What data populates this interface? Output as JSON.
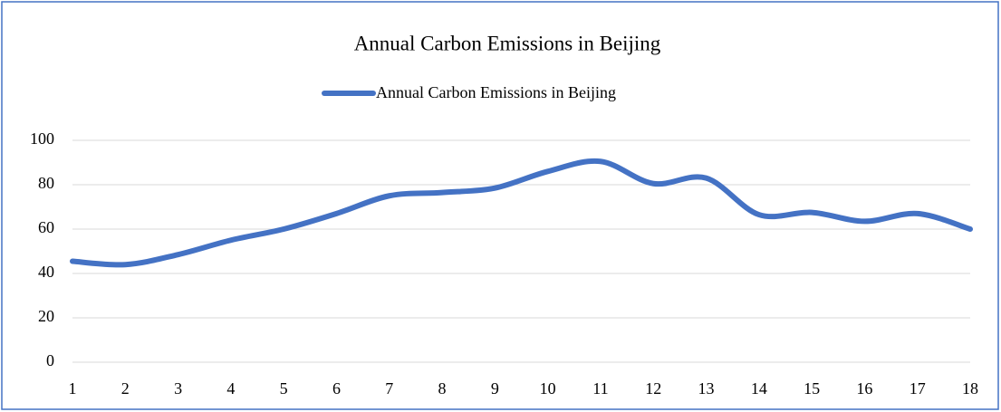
{
  "chart_data": {
    "type": "line",
    "title": "Annual Carbon Emissions in Beijing",
    "x": [
      1,
      2,
      3,
      4,
      5,
      6,
      7,
      8,
      9,
      10,
      11,
      12,
      13,
      14,
      15,
      16,
      17,
      18
    ],
    "series": [
      {
        "name": "Annual Carbon Emissions in Beijing",
        "color": "#4472c4",
        "values": [
          45.5,
          44,
          48.5,
          55,
          60,
          67,
          75,
          76.5,
          78.5,
          86,
          90.5,
          80.5,
          83,
          66.5,
          67.5,
          63.5,
          67,
          60
        ]
      }
    ],
    "xlim": [
      1,
      18
    ],
    "xticks": [
      1,
      2,
      3,
      4,
      5,
      6,
      7,
      8,
      9,
      10,
      11,
      12,
      13,
      14,
      15,
      16,
      17,
      18
    ],
    "ylim": [
      0,
      100
    ],
    "yticks": [
      0,
      20,
      40,
      60,
      80,
      100
    ],
    "grid": true,
    "legend": "top",
    "smooth": true
  }
}
